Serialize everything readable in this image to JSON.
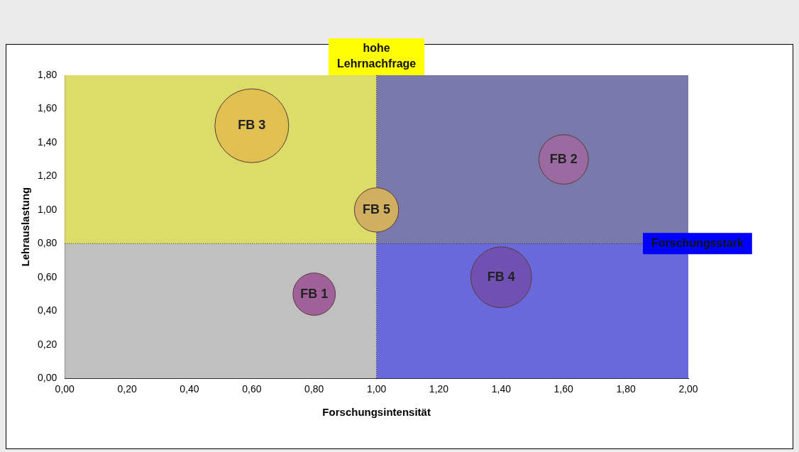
{
  "chart_data": {
    "type": "bubble",
    "xlabel": "Forschungsintensität",
    "ylabel": "Lehrauslastung",
    "series": [
      {
        "name": "FB 1",
        "color": "#a0609a",
        "x": [
          0.8
        ],
        "values": [
          0.5
        ],
        "sizes": [
          0.33
        ]
      },
      {
        "name": "FB 2",
        "color": "#9a6aa0",
        "x": [
          1.6
        ],
        "values": [
          1.3
        ],
        "sizes": [
          0.45
        ]
      },
      {
        "name": "FB 3",
        "color": "#e0c050",
        "x": [
          0.6
        ],
        "values": [
          1.5
        ],
        "sizes": [
          1
        ]
      },
      {
        "name": "FB 4",
        "color": "#7050b0",
        "x": [
          1.4
        ],
        "values": [
          0.6
        ],
        "sizes": [
          0.68
        ]
      },
      {
        "name": "FB 5",
        "color": "#d0b060",
        "x": [
          1.0
        ],
        "values": [
          1.0
        ],
        "sizes": [
          0.36
        ]
      }
    ],
    "bands": [
      {
        "axis": "y",
        "from": 0.8,
        "to": 1.8,
        "label": "hohe Lehrnachfrage",
        "color": "#ffff00"
      },
      {
        "axis": "x",
        "from": 1,
        "to": 2,
        "label": "Forschungsstark",
        "color": "#0000ff"
      }
    ],
    "xlim": [
      0,
      2
    ],
    "ylim": [
      0,
      1.8
    ],
    "xticks": [
      {
        "value": 0,
        "label": "0,00"
      },
      {
        "value": 0.2,
        "label": "0,20"
      },
      {
        "value": 0.4,
        "label": "0,40"
      },
      {
        "value": 0.6,
        "label": "0,60"
      },
      {
        "value": 0.8,
        "label": "0,80"
      },
      {
        "value": 1,
        "label": "1,00"
      },
      {
        "value": 1.2,
        "label": "1,20"
      },
      {
        "value": 1.4,
        "label": "1,40"
      },
      {
        "value": 1.6,
        "label": "1,60"
      },
      {
        "value": 1.8,
        "label": "1,80"
      },
      {
        "value": 2,
        "label": "2,00"
      }
    ],
    "yticks": [
      {
        "value": 0,
        "label": "0,00"
      },
      {
        "value": 0.2,
        "label": "0,20"
      },
      {
        "value": 0.4,
        "label": "0,40"
      },
      {
        "value": 0.6,
        "label": "0,60"
      },
      {
        "value": 0.8,
        "label": "0,80"
      },
      {
        "value": 1,
        "label": "1,00"
      },
      {
        "value": 1.2,
        "label": "1,20"
      },
      {
        "value": 1.4,
        "label": "1,40"
      },
      {
        "value": 1.6,
        "label": "1,60"
      },
      {
        "value": 1.8,
        "label": "1,80"
      }
    ],
    "ref_lines": [
      {
        "axis": "x",
        "value": 1,
        "line_style": "dotted"
      },
      {
        "axis": "y",
        "value": 0.8,
        "line_style": "dotted"
      }
    ],
    "grid": false,
    "legend": false
  }
}
